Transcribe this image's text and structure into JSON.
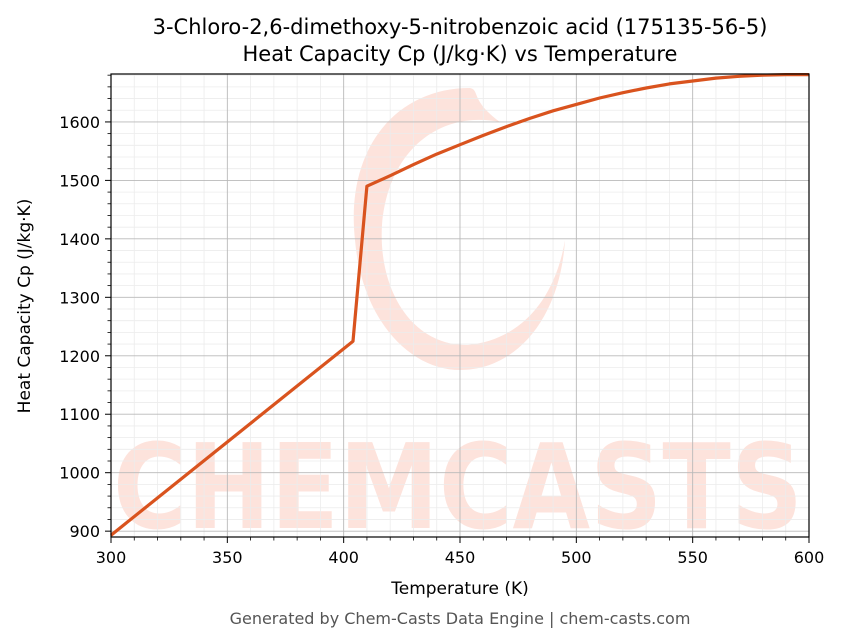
{
  "chart_data": {
    "type": "line",
    "title_line1": "3-Chloro-2,6-dimethoxy-5-nitrobenzoic acid (175135-56-5)",
    "title_line2": "Heat Capacity Cp (J/kg·K) vs Temperature",
    "xlabel": "Temperature (K)",
    "ylabel": "Heat Capacity Cp (J/kg·K)",
    "xlim": [
      300,
      600
    ],
    "ylim": [
      890,
      1682
    ],
    "x_ticks": [
      300,
      350,
      400,
      450,
      500,
      550,
      600
    ],
    "y_ticks": [
      900,
      1000,
      1100,
      1200,
      1300,
      1400,
      1500,
      1600
    ],
    "grid": true,
    "series": [
      {
        "color": "#d9531e",
        "x": [
          300,
          404,
          410,
          420,
          430,
          440,
          450,
          460,
          470,
          480,
          490,
          500,
          510,
          520,
          530,
          540,
          550,
          560,
          570,
          580,
          590,
          600
        ],
        "y": [
          893,
          1225,
          1490,
          1508,
          1527,
          1545,
          1561,
          1577,
          1592,
          1606,
          1619,
          1630,
          1641,
          1650,
          1658,
          1665,
          1670,
          1675,
          1678,
          1680,
          1681,
          1681
        ]
      }
    ]
  },
  "watermark": {
    "text": "CHEMCASTS"
  },
  "footer": "Generated by Chem-Casts Data Engine | chem-casts.com"
}
